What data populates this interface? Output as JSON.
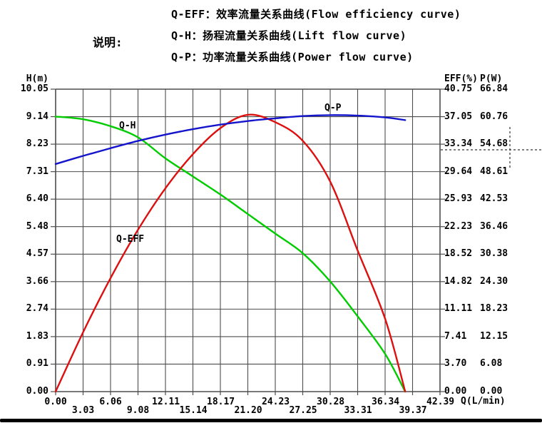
{
  "legend": {
    "label": "说明:",
    "lines": [
      "Q-EFF：效率流量关系曲线(Flow efficiency curve)",
      "Q-H：扬程流量关系曲线(Lift flow curve)",
      "Q-P：功率流量关系曲线(Power flow curve)"
    ]
  },
  "axes": {
    "left_title": "H(m)",
    "right_eff_title": "EFF(%)",
    "right_p_title": "P(W)",
    "bottom_title": "Q(L/min)"
  },
  "curve_labels": {
    "qh": "Q-H",
    "qp": "Q-P",
    "qeff": "Q-EFF"
  },
  "colors": {
    "qh_curve": "#00cc00",
    "qp_curve": "#1414cc",
    "qeff_curve": "#dd0f0f",
    "grid": "#4d4d4d",
    "dashed_marker": "#333333",
    "text": "#000000"
  },
  "annotations": {
    "dashed_marker_p_value": "54.68"
  },
  "chart_data": {
    "type": "line",
    "title": "",
    "grid": true,
    "x_axis": {
      "label": "Q(L/min)",
      "range": [
        0,
        42.39
      ],
      "ticks": [
        0.0,
        3.03,
        6.06,
        9.08,
        12.11,
        15.14,
        18.17,
        21.2,
        24.23,
        27.25,
        30.28,
        33.31,
        36.34,
        39.37,
        42.39
      ]
    },
    "y_axis_left": {
      "label": "H(m)",
      "range": [
        0,
        10.05
      ],
      "ticks": [
        10.05,
        9.14,
        8.23,
        7.31,
        6.4,
        5.48,
        4.57,
        3.66,
        2.74,
        1.83,
        0.91,
        0.0
      ]
    },
    "y_axis_right_eff": {
      "label": "EFF(%)",
      "range": [
        0,
        40.75
      ],
      "ticks": [
        40.75,
        37.05,
        33.34,
        29.64,
        25.93,
        22.23,
        18.52,
        14.82,
        11.11,
        7.41,
        3.7,
        0.0
      ]
    },
    "y_axis_right_p": {
      "label": "P(W)",
      "range": [
        0,
        66.84
      ],
      "ticks": [
        66.84,
        60.76,
        54.68,
        48.61,
        42.53,
        36.46,
        30.38,
        24.3,
        18.23,
        12.15,
        6.08,
        0.0
      ]
    },
    "series": [
      {
        "name": "Q-H",
        "axis": "left",
        "color_key": "qh_curve",
        "x": [
          0,
          3.03,
          6.06,
          9.08,
          12.11,
          15.14,
          18.17,
          21.2,
          24.23,
          27.25,
          30.28,
          33.31,
          36.34,
          38.55
        ],
        "values": [
          9.14,
          9.05,
          8.82,
          8.45,
          7.75,
          7.15,
          6.55,
          5.9,
          5.25,
          4.6,
          3.66,
          2.5,
          1.25,
          0.0
        ]
      },
      {
        "name": "Q-EFF",
        "axis": "right_eff",
        "color_key": "qeff_curve",
        "x": [
          0,
          3.03,
          6.06,
          9.08,
          12.11,
          15.14,
          18.17,
          21.2,
          24.23,
          27.25,
          30.28,
          33.31,
          36.34,
          38.55
        ],
        "values": [
          0.0,
          8.0,
          15.3,
          21.8,
          27.4,
          32.0,
          35.5,
          37.3,
          36.3,
          33.8,
          28.3,
          19.0,
          9.8,
          0.0
        ]
      },
      {
        "name": "Q-P",
        "axis": "right_p",
        "color_key": "qp_curve",
        "x": [
          0,
          3.03,
          6.06,
          9.08,
          12.11,
          15.14,
          18.17,
          21.2,
          24.23,
          27.25,
          30.28,
          33.31,
          36.34,
          38.55
        ],
        "values": [
          50.3,
          52.1,
          53.8,
          55.4,
          56.8,
          58.0,
          59.0,
          59.8,
          60.4,
          60.9,
          61.1,
          61.0,
          60.6,
          60.0
        ]
      }
    ]
  }
}
